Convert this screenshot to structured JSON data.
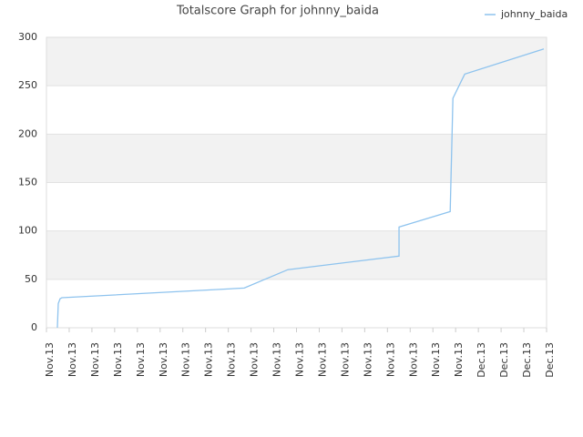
{
  "chart_data": {
    "type": "line",
    "title": "Totalscore Graph for johnny_baida",
    "x": [
      0.48,
      0.52,
      0.6,
      0.68,
      8.7,
      10.62,
      15.51,
      15.51,
      17.76,
      17.84,
      17.88,
      18.4,
      21.88
    ],
    "series": [
      {
        "name": "johnny_baida",
        "color": "#8ec3ee",
        "values": [
          0,
          25,
          30,
          31,
          41,
          60,
          74,
          104,
          120,
          197,
          237,
          262,
          288
        ]
      }
    ],
    "xlim": [
      0,
      22
    ],
    "xticks": [
      {
        "value": 0,
        "label": "Nov.13"
      },
      {
        "value": 1,
        "label": "Nov.13"
      },
      {
        "value": 2,
        "label": "Nov.13"
      },
      {
        "value": 3,
        "label": "Nov.13"
      },
      {
        "value": 4,
        "label": "Nov.13"
      },
      {
        "value": 5,
        "label": "Nov.13"
      },
      {
        "value": 6,
        "label": "Nov.13"
      },
      {
        "value": 7,
        "label": "Nov.13"
      },
      {
        "value": 8,
        "label": "Nov.13"
      },
      {
        "value": 9,
        "label": "Nov.13"
      },
      {
        "value": 10,
        "label": "Nov.13"
      },
      {
        "value": 11,
        "label": "Nov.13"
      },
      {
        "value": 12,
        "label": "Nov.13"
      },
      {
        "value": 13,
        "label": "Nov.13"
      },
      {
        "value": 14,
        "label": "Nov.13"
      },
      {
        "value": 15,
        "label": "Nov.13"
      },
      {
        "value": 16,
        "label": "Nov.13"
      },
      {
        "value": 17,
        "label": "Nov.13"
      },
      {
        "value": 18,
        "label": "Nov.13"
      },
      {
        "value": 19,
        "label": "Dec.13"
      },
      {
        "value": 20,
        "label": "Dec.13"
      },
      {
        "value": 21,
        "label": "Dec.13"
      },
      {
        "value": 22,
        "label": "Dec.13"
      }
    ],
    "ylim": [
      0,
      300
    ],
    "yticks": [
      0,
      50,
      100,
      150,
      200,
      250,
      300
    ],
    "grid": true,
    "legend": "top-right"
  }
}
